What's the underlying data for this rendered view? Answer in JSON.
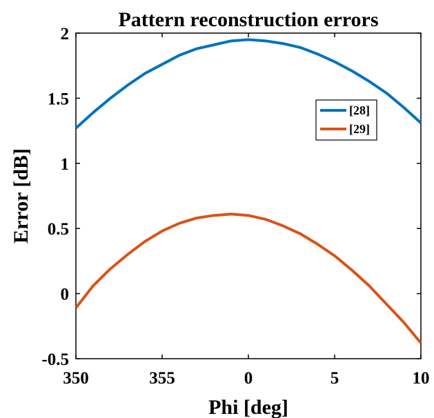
{
  "chart_data": {
    "type": "line",
    "title": "Pattern reconstruction errors",
    "xlabel": "Phi [deg]",
    "ylabel": "Error [dB]",
    "x_tick_labels": [
      "350",
      "355",
      "0",
      "5",
      "10"
    ],
    "y_tick_labels": [
      "-0.5",
      "0",
      "0.5",
      "1",
      "1.5",
      "2"
    ],
    "y_ticks": [
      -0.5,
      0,
      0.5,
      1,
      1.5,
      2
    ],
    "ylim": [
      -0.5,
      2
    ],
    "xlim": [
      -10,
      10
    ],
    "grid": false,
    "legend_position": "right-upper",
    "x": [
      -10,
      -9,
      -8,
      -7,
      -6,
      -5,
      -4,
      -3,
      -2,
      -1,
      0,
      1,
      2,
      3,
      4,
      5,
      6,
      7,
      8,
      9,
      10
    ],
    "series": [
      {
        "name": "[28]",
        "color": "#0072BD",
        "values": [
          1.27,
          1.39,
          1.5,
          1.6,
          1.69,
          1.76,
          1.83,
          1.88,
          1.91,
          1.94,
          1.95,
          1.94,
          1.92,
          1.89,
          1.84,
          1.78,
          1.71,
          1.63,
          1.54,
          1.43,
          1.31
        ]
      },
      {
        "name": "[29]",
        "color": "#D95319",
        "values": [
          -0.11,
          0.06,
          0.19,
          0.3,
          0.4,
          0.48,
          0.54,
          0.58,
          0.6,
          0.61,
          0.6,
          0.57,
          0.52,
          0.46,
          0.38,
          0.29,
          0.18,
          0.06,
          -0.08,
          -0.22,
          -0.38
        ]
      }
    ]
  }
}
